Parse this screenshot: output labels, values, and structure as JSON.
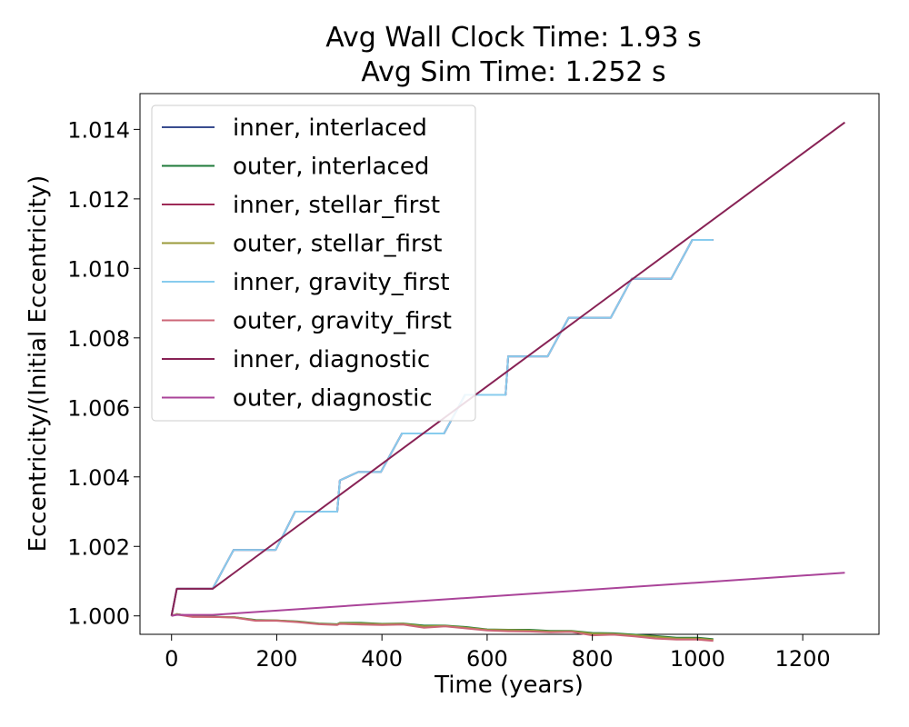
{
  "chart_data": {
    "type": "line",
    "title": "Avg Wall Clock Time: 1.93 s",
    "subtitle": "Avg Sim Time: 1.252 s",
    "xlabel": "Time (years)",
    "ylabel": "Eccentricity/(Initial Eccentricity)",
    "xlim": [
      -60,
      1345
    ],
    "ylim": [
      0.99947,
      1.01503
    ],
    "xticks": [
      "0",
      "200",
      "400",
      "600",
      "800",
      "1000",
      "1200"
    ],
    "yticks": [
      "1.000",
      "1.002",
      "1.004",
      "1.006",
      "1.008",
      "1.010",
      "1.012",
      "1.014"
    ],
    "grid": false,
    "legend_position": "top-left",
    "series": [
      {
        "name": "inner, interlaced",
        "color": "#3a4d8f",
        "x": [
          0,
          10,
          78,
          118,
          198,
          235,
          315,
          320,
          355,
          398,
          438,
          478,
          518,
          558,
          598,
          635,
          640,
          678,
          715,
          755,
          795,
          835,
          875,
          915,
          950,
          990,
          1030
        ],
        "y": [
          1.0,
          1.00078,
          1.00078,
          1.0019,
          1.0019,
          1.003,
          1.003,
          1.0039,
          1.00414,
          1.00414,
          1.00525,
          1.00525,
          1.00525,
          1.00636,
          1.00636,
          1.00636,
          1.00747,
          1.00747,
          1.00747,
          1.00858,
          1.00858,
          1.00858,
          1.0097,
          1.0097,
          1.0097,
          1.01082,
          1.01082
        ]
      },
      {
        "name": "outer, interlaced",
        "color": "#1f7a3a",
        "x": [
          0,
          10,
          40,
          80,
          120,
          160,
          200,
          240,
          280,
          315,
          320,
          360,
          400,
          440,
          480,
          520,
          560,
          600,
          640,
          680,
          720,
          760,
          800,
          840,
          880,
          920,
          960,
          1000,
          1030
        ],
        "y": [
          1.0,
          1.00005,
          0.99998,
          0.99998,
          0.99996,
          0.99988,
          0.99987,
          0.99984,
          0.99978,
          0.99976,
          0.9998,
          0.9998,
          0.99977,
          0.99978,
          0.99972,
          0.99972,
          0.99968,
          0.99961,
          0.9996,
          0.9996,
          0.99957,
          0.99957,
          0.99951,
          0.9995,
          0.99946,
          0.99942,
          0.99937,
          0.99937,
          0.99933
        ]
      },
      {
        "name": "inner, stellar_first",
        "color": "#9e2a57",
        "x": [
          0,
          10,
          78,
          118,
          198,
          235,
          315,
          320,
          355,
          398,
          438,
          478,
          518,
          558,
          598,
          635,
          640,
          678,
          715,
          755,
          795,
          835,
          875,
          915,
          950,
          990,
          1030
        ],
        "y": [
          1.0,
          1.00078,
          1.00078,
          1.0019,
          1.0019,
          1.003,
          1.003,
          1.0039,
          1.00414,
          1.00414,
          1.00525,
          1.00525,
          1.00525,
          1.00636,
          1.00636,
          1.00636,
          1.00747,
          1.00747,
          1.00747,
          1.00858,
          1.00858,
          1.00858,
          1.0097,
          1.0097,
          1.0097,
          1.01082,
          1.01082
        ]
      },
      {
        "name": "outer, stellar_first",
        "color": "#9a9a3a",
        "x": [
          0,
          10,
          40,
          80,
          120,
          160,
          200,
          240,
          280,
          315,
          320,
          360,
          400,
          440,
          480,
          520,
          560,
          600,
          640,
          680,
          720,
          760,
          800,
          840,
          880,
          920,
          960,
          1000,
          1030
        ],
        "y": [
          1.0,
          1.00005,
          0.99998,
          0.99997,
          0.99996,
          0.99987,
          0.99987,
          0.99983,
          0.99977,
          0.99975,
          0.99979,
          0.99978,
          0.99976,
          0.99977,
          0.9997,
          0.99971,
          0.99966,
          0.9996,
          0.99959,
          0.99958,
          0.99955,
          0.99956,
          0.99949,
          0.99948,
          0.99944,
          0.9994,
          0.99935,
          0.99935,
          0.99931
        ]
      },
      {
        "name": "inner, gravity_first",
        "color": "#88ccee",
        "x": [
          0,
          10,
          78,
          118,
          198,
          235,
          315,
          320,
          355,
          398,
          438,
          478,
          518,
          558,
          598,
          635,
          640,
          678,
          715,
          755,
          795,
          835,
          875,
          915,
          950,
          990,
          1030
        ],
        "y": [
          1.0,
          1.00078,
          1.00078,
          1.0019,
          1.0019,
          1.003,
          1.003,
          1.0039,
          1.00414,
          1.00414,
          1.00525,
          1.00525,
          1.00525,
          1.00636,
          1.00636,
          1.00636,
          1.00747,
          1.00747,
          1.00747,
          1.00858,
          1.00858,
          1.00858,
          1.0097,
          1.0097,
          1.0097,
          1.01082,
          1.01082
        ]
      },
      {
        "name": "outer, gravity_first",
        "color": "#cc6677",
        "x": [
          0,
          10,
          40,
          80,
          120,
          160,
          200,
          240,
          280,
          315,
          320,
          360,
          400,
          440,
          480,
          520,
          560,
          600,
          640,
          680,
          720,
          760,
          800,
          840,
          880,
          920,
          960,
          1000,
          1030
        ],
        "y": [
          1.0,
          1.00004,
          0.99997,
          0.99997,
          0.99995,
          0.99986,
          0.99986,
          0.99982,
          0.99976,
          0.99974,
          0.99977,
          0.99975,
          0.99974,
          0.99975,
          0.99966,
          0.9997,
          0.99964,
          0.99958,
          0.99956,
          0.99955,
          0.99953,
          0.99954,
          0.99944,
          0.99946,
          0.99941,
          0.99935,
          0.99932,
          0.99932,
          0.99928
        ]
      },
      {
        "name": "inner, diagnostic",
        "color": "#882255",
        "x": [
          0,
          10,
          78,
          1280
        ],
        "y": [
          1.0,
          1.00078,
          1.00078,
          1.0142
        ]
      },
      {
        "name": "outer, diagnostic",
        "color": "#aa4499",
        "x": [
          0,
          10,
          78,
          1280
        ],
        "y": [
          1.0,
          1.00003,
          1.00003,
          1.00124
        ]
      }
    ]
  }
}
